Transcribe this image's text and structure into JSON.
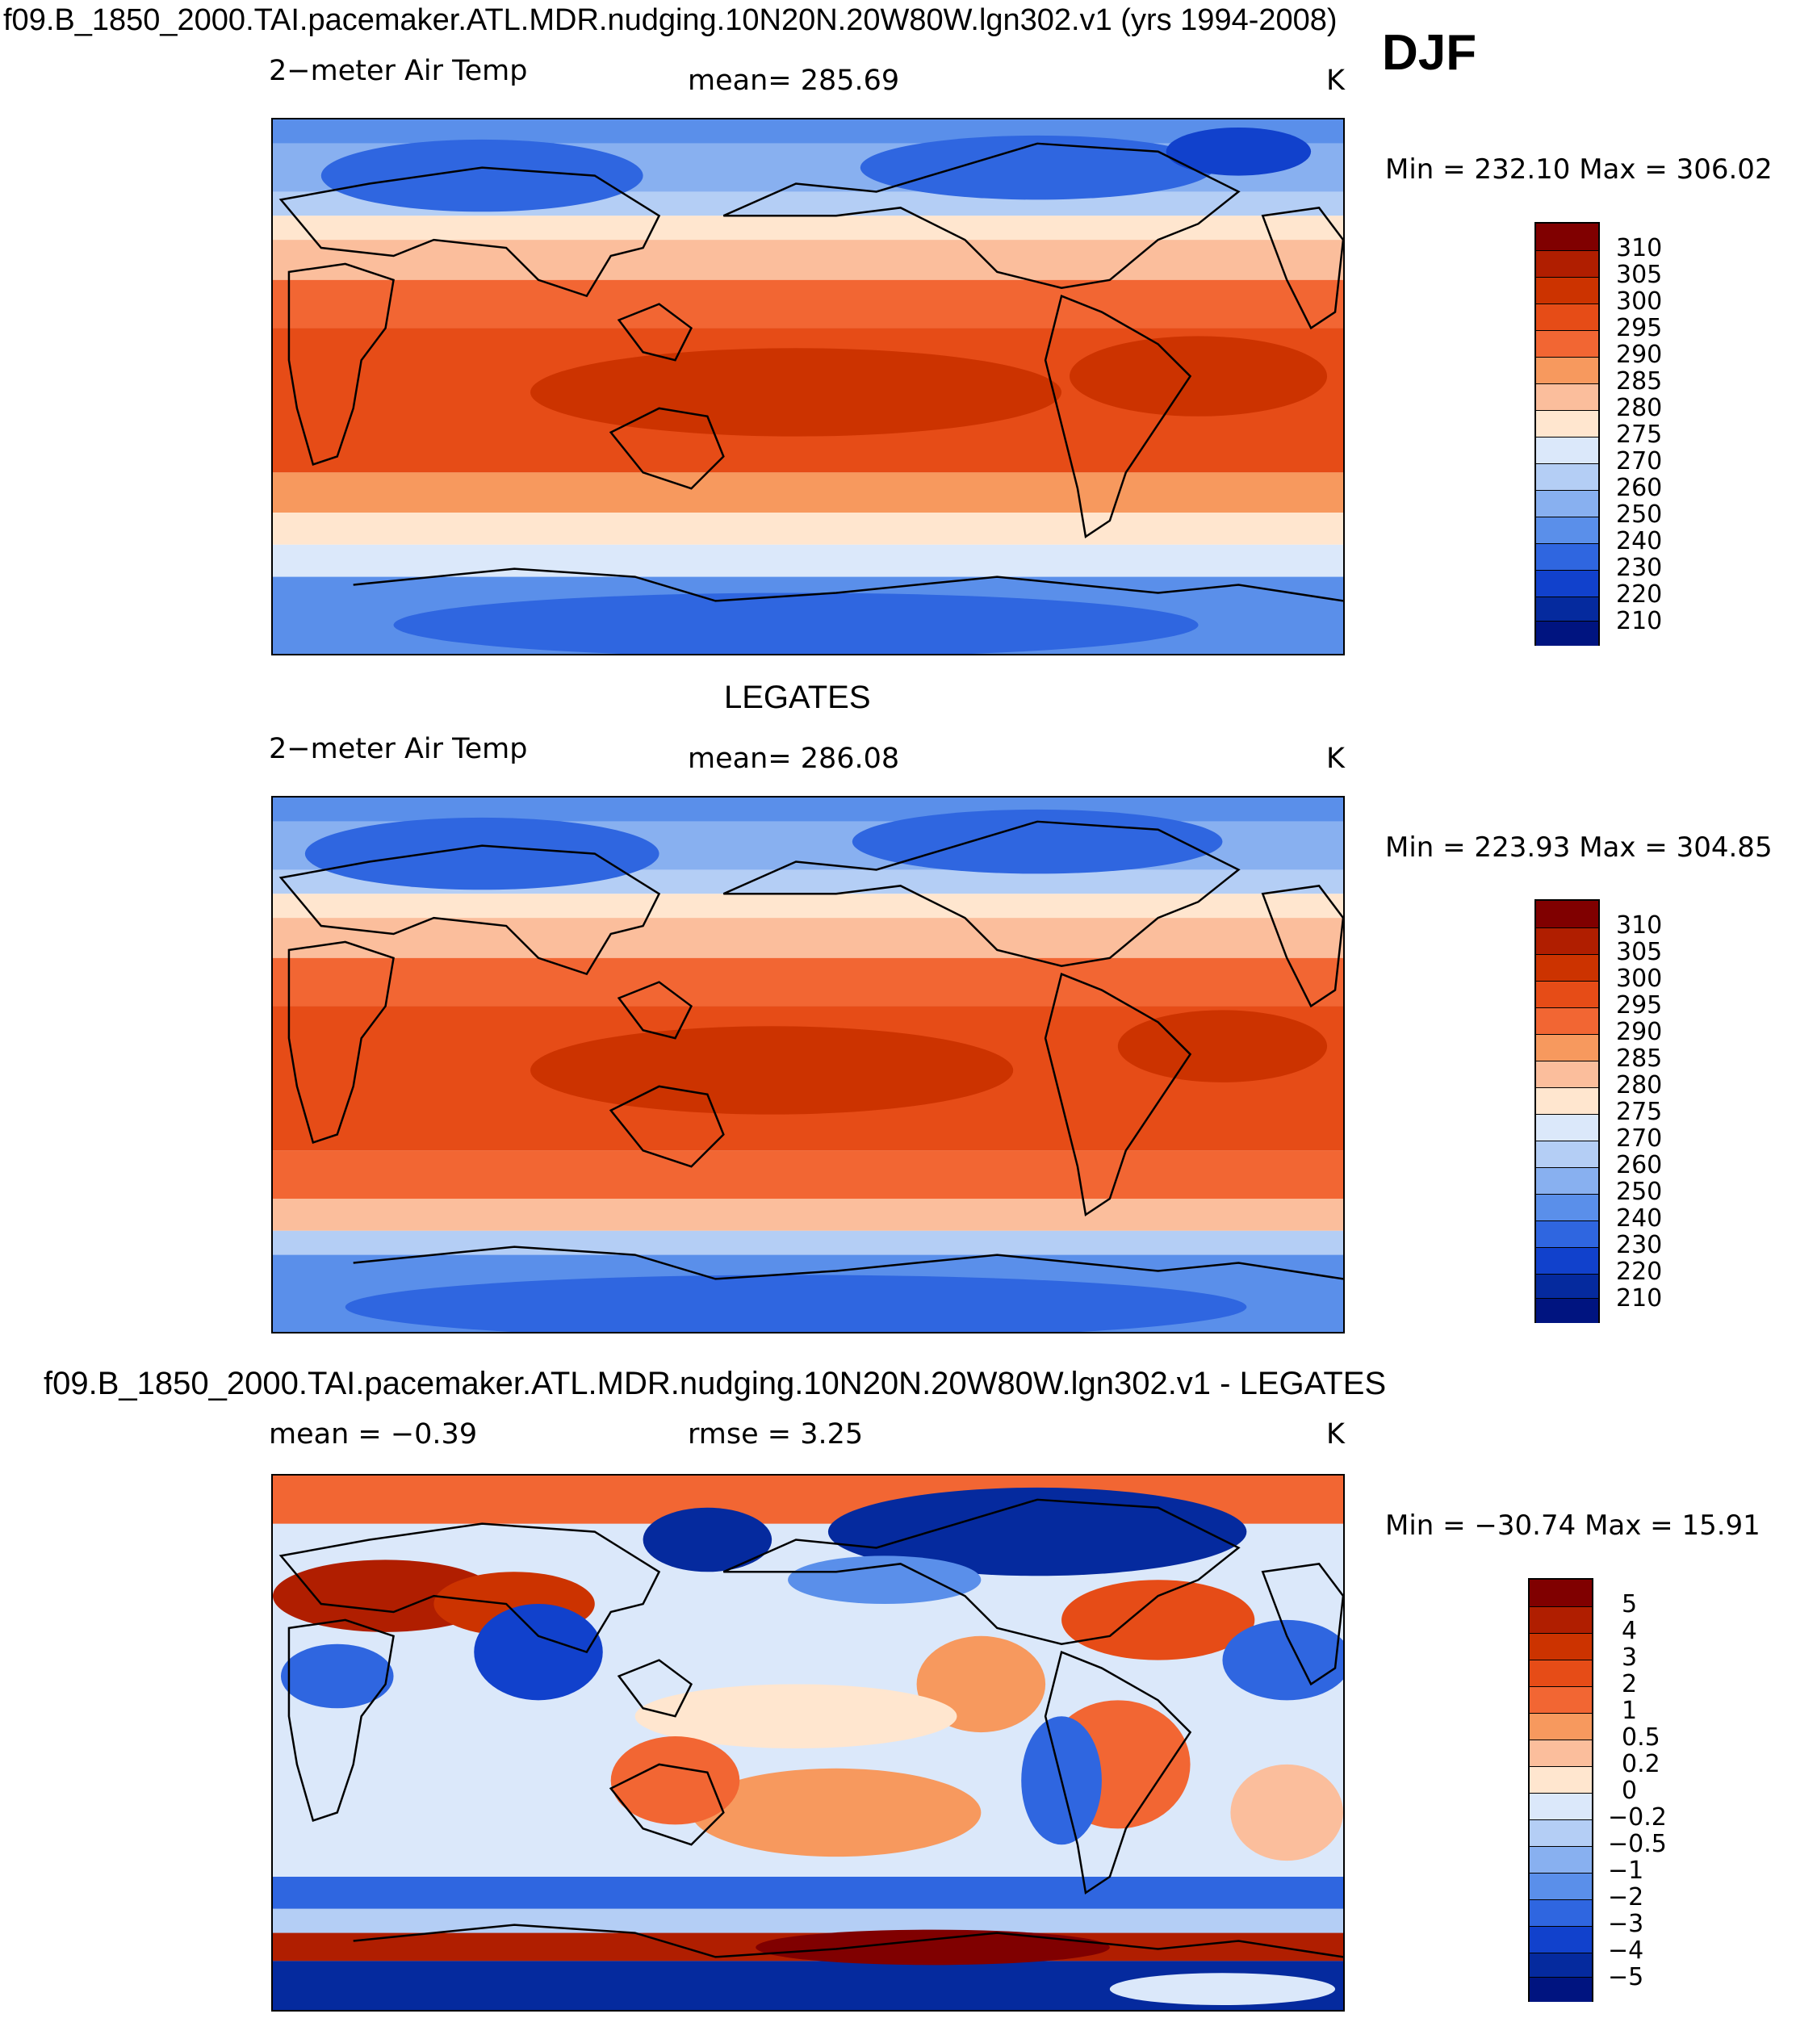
{
  "header": {
    "title": "f09.B_1850_2000.TAI.pacemaker.ATL.MDR.nudging.10N20N.20W80W.lgn302.v1 (yrs 1994-2008)",
    "season": "DJF"
  },
  "panels": [
    {
      "title": "",
      "variable": "2−meter Air Temp",
      "stat_text": "mean= 285.69",
      "units": "K",
      "minmax": "Min = 232.10 Max = 306.02"
    },
    {
      "title": "LEGATES",
      "variable": "2−meter Air Temp",
      "stat_text": "mean= 286.08",
      "units": "K",
      "minmax": "Min = 223.93 Max = 304.85"
    },
    {
      "title": "f09.B_1850_2000.TAI.pacemaker.ATL.MDR.nudging.10N20N.20W80W.lgn302.v1 - LEGATES",
      "variable": "mean = −0.39",
      "stat_text": "rmse = 3.25",
      "units": "K",
      "minmax": "Min = −30.74 Max = 15.91"
    }
  ],
  "colorbars": {
    "temperature": {
      "levels": [
        "310",
        "305",
        "300",
        "295",
        "290",
        "285",
        "280",
        "275",
        "270",
        "260",
        "250",
        "240",
        "230",
        "220",
        "210"
      ],
      "colors": [
        "#800000",
        "#b01e00",
        "#cc3300",
        "#e64c17",
        "#f26633",
        "#f7995e",
        "#fbbe9c",
        "#ffe6cf",
        "#dbe8fa",
        "#b4cef5",
        "#88b0f0",
        "#5a8fea",
        "#2f66e0",
        "#1141cc",
        "#052a9e",
        "#001480"
      ]
    },
    "difference": {
      "levels": [
        "5",
        "4",
        "3",
        "2",
        "1",
        "0.5",
        "0.2",
        "0",
        "−0.2",
        "−0.5",
        "−1",
        "−2",
        "−3",
        "−4",
        "−5"
      ],
      "colors": [
        "#800000",
        "#b01e00",
        "#cc3300",
        "#e64c17",
        "#f26633",
        "#f7995e",
        "#fbbe9c",
        "#ffe6cf",
        "#dbe8fa",
        "#b4cef5",
        "#88b0f0",
        "#5a8fea",
        "#2f66e0",
        "#1141cc",
        "#052a9e",
        "#001480"
      ]
    }
  }
}
